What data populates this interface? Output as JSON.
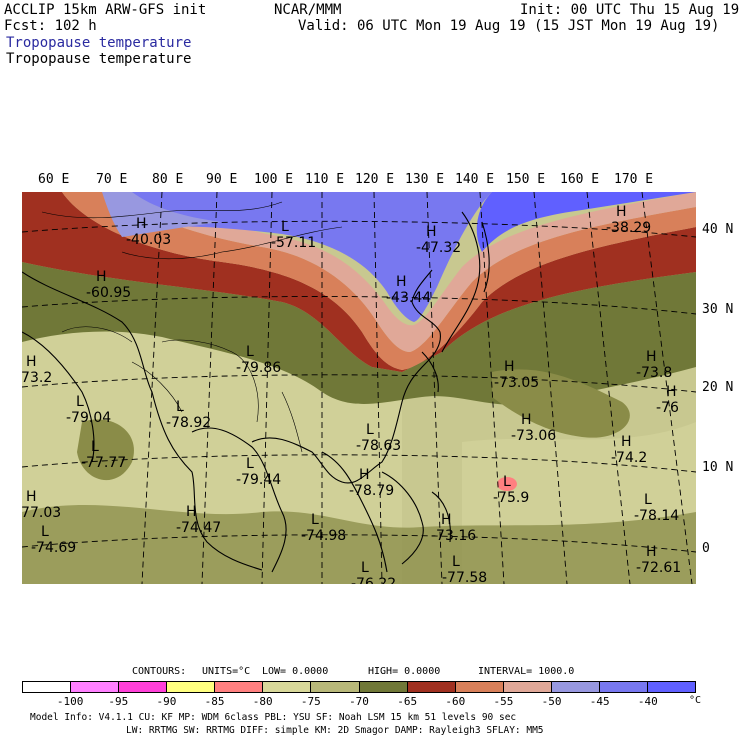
{
  "header": {
    "model_title": "ACCLIP 15km ARW-GFS init",
    "forecast": "Fcst:  102 h",
    "center": "NCAR/MMM",
    "init": "Init: 00 UTC Thu 15 Aug 19",
    "valid": "Valid: 06 UTC Mon 19 Aug 19 (15 JST Mon 19 Aug 19)",
    "field_shaded": "Tropopause temperature",
    "field_contour": "Tropopause temperature"
  },
  "map": {
    "lon_labels": [
      "60 E",
      "70 E",
      "80 E",
      "90 E",
      "100 E",
      "110 E",
      "120 E",
      "130 E",
      "140 E",
      "150 E",
      "160 E",
      "170 E"
    ],
    "lat_labels": [
      "40 N",
      "30 N",
      "20 N",
      "10 N",
      "0"
    ],
    "extrema": [
      {
        "type": "H",
        "value": "-40.03"
      },
      {
        "type": "L",
        "value": "-57.11"
      },
      {
        "type": "H",
        "value": "-47.32"
      },
      {
        "type": "H",
        "value": "-38.29"
      },
      {
        "type": "H",
        "value": "-60.95"
      },
      {
        "type": "H",
        "value": "-43.44"
      },
      {
        "type": "L",
        "value": "-79.86"
      },
      {
        "type": "H",
        "value": "-73.8"
      },
      {
        "type": "H",
        "value": "-73.05"
      },
      {
        "type": "L",
        "value": "-79.04"
      },
      {
        "type": "L",
        "value": "-78.92"
      },
      {
        "type": "L",
        "value": "-78.63"
      },
      {
        "type": "H",
        "value": "-73.06"
      },
      {
        "type": "H",
        "value": "-76"
      },
      {
        "type": "L",
        "value": "-77.77"
      },
      {
        "type": "L",
        "value": "-79.44"
      },
      {
        "type": "H",
        "value": "-74.2"
      },
      {
        "type": "H",
        "value": "-78.79"
      },
      {
        "type": "L",
        "value": "-75.9"
      },
      {
        "type": "H",
        "value": "-74.47"
      },
      {
        "type": "L",
        "value": "-74.98"
      },
      {
        "type": "H",
        "value": "-73.16"
      },
      {
        "type": "L",
        "value": "-78.14"
      },
      {
        "type": "L",
        "value": "-74.69"
      },
      {
        "type": "H",
        "value": "-72.61"
      },
      {
        "type": "L",
        "value": "-76.22"
      },
      {
        "type": "L",
        "value": "-77.58"
      },
      {
        "type": "H",
        "value": "-73.2"
      },
      {
        "type": "H",
        "value": "-77.03"
      }
    ]
  },
  "contour_info": {
    "contours": "CONTOURS:",
    "units": "UNITS=°C",
    "low": "LOW=  0.0000",
    "high": "HIGH=  0.0000",
    "interval": "INTERVAL=   1000.0"
  },
  "colorbar": {
    "colors": [
      "#ffffff",
      "#ff80ff",
      "#ff40d8",
      "#ffff80",
      "#ff8080",
      "#d8d89a",
      "#b8b87a",
      "#707838",
      "#a03020",
      "#d8805a",
      "#e0a898",
      "#9898e0",
      "#7878f0",
      "#6060ff"
    ],
    "ticks": [
      "-100",
      "-95",
      "-90",
      "-85",
      "-80",
      "-75",
      "-70",
      "-65",
      "-60",
      "-55",
      "-50",
      "-45",
      "-40"
    ],
    "unit": "°C"
  },
  "footer": {
    "line1": "Model Info: V4.1.1      CU: KF       MP: WDM 6class  PBL: YSU        SF: Noah LSM     15 km    51 levels   90 sec",
    "line2": "LW: RRTMG   SW: RRTMG   DIFF: simple KM: 2D Smagor DAMP: Rayleigh3  SFLAY: MM5"
  }
}
